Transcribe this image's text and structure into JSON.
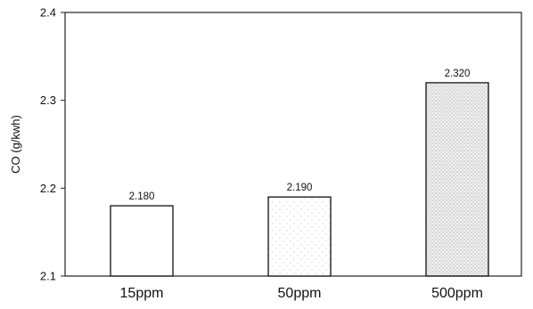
{
  "chart_data": {
    "type": "bar",
    "categories": [
      "15ppm",
      "50ppm",
      "500ppm"
    ],
    "values": [
      2.18,
      2.19,
      2.32
    ],
    "data_labels": [
      "2.180",
      "2.190",
      "2.320"
    ],
    "title": "",
    "xlabel": "",
    "ylabel": "CO (g/kwh)",
    "ylim": [
      2.1,
      2.4
    ],
    "yticks": [
      "2.1",
      "2.2",
      "2.3",
      "2.4"
    ],
    "grid": false,
    "legend": "none",
    "fills": [
      "white",
      "light-stipple",
      "dense-stipple"
    ]
  }
}
